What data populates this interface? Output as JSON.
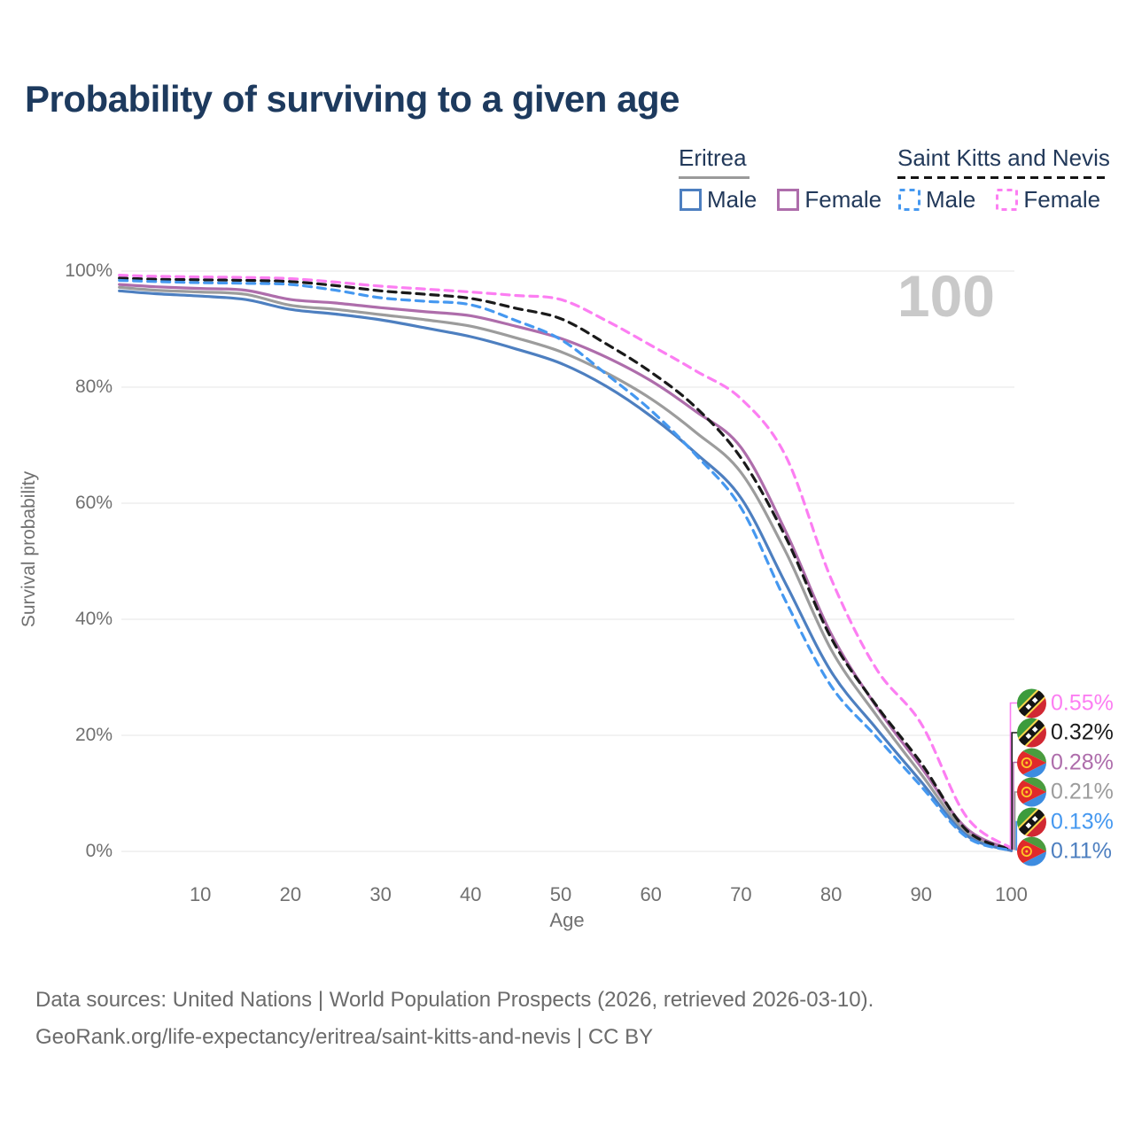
{
  "title": "Probability of surviving to a given age",
  "watermark_age": "100",
  "legend": {
    "groups": [
      {
        "country": "Eritrea",
        "line_style": "solid",
        "underline_color": "#9a9a9a",
        "items": [
          {
            "label": "Male",
            "color": "#4d7fc0"
          },
          {
            "label": "Female",
            "color": "#ae6dab"
          }
        ]
      },
      {
        "country": "Saint Kitts and Nevis",
        "line_style": "dashed",
        "underline_color": "#141414",
        "items": [
          {
            "label": "Male",
            "color": "#4598f0"
          },
          {
            "label": "Female",
            "color": "#fc7ef2"
          }
        ]
      }
    ]
  },
  "axes": {
    "y_title": "Survival probability",
    "x_title": "Age",
    "y_ticks": [
      {
        "label": "100%",
        "value": 100
      },
      {
        "label": "80%",
        "value": 80
      },
      {
        "label": "60%",
        "value": 60
      },
      {
        "label": "40%",
        "value": 40
      },
      {
        "label": "20%",
        "value": 20
      },
      {
        "label": "0%",
        "value": 0
      }
    ],
    "x_ticks": [
      10,
      20,
      30,
      40,
      50,
      60,
      70,
      80,
      90,
      100
    ]
  },
  "end_labels": [
    {
      "value": "0.55%",
      "color": "#fc7ef2",
      "flag": "saint-kitts-and-nevis",
      "series": "Saint Kitts and Nevis Female"
    },
    {
      "value": "0.32%",
      "color": "#1a1a1a",
      "flag": "saint-kitts-and-nevis",
      "series": "Saint Kitts and Nevis Both"
    },
    {
      "value": "0.28%",
      "color": "#ae6dab",
      "flag": "eritrea",
      "series": "Eritrea Female"
    },
    {
      "value": "0.21%",
      "color": "#9c9c9c",
      "flag": "eritrea",
      "series": "Eritrea Both"
    },
    {
      "value": "0.13%",
      "color": "#4598f0",
      "flag": "saint-kitts-and-nevis",
      "series": "Saint Kitts and Nevis Male"
    },
    {
      "value": "0.11%",
      "color": "#4d7fc0",
      "flag": "eritrea",
      "series": "Eritrea Male"
    }
  ],
  "sources": {
    "line1": "Data sources: United Nations | World Population Prospects (2026, retrieved 2026-03-10).",
    "line2": "GeoRank.org/life-expectancy/eritrea/saint-kitts-and-nevis | CC BY"
  },
  "chart_data": {
    "type": "line",
    "title": "Probability of surviving to a given age",
    "xlabel": "Age",
    "ylabel": "Survival probability",
    "xlim": [
      0,
      100
    ],
    "ylim": [
      0,
      100
    ],
    "grid": "horizontal",
    "legend_position": "top-right",
    "x": [
      1,
      5,
      10,
      15,
      20,
      25,
      30,
      35,
      40,
      45,
      50,
      55,
      60,
      65,
      70,
      75,
      80,
      85,
      90,
      95,
      100
    ],
    "series": [
      {
        "name": "Eritrea Both",
        "country": "Eritrea",
        "sex": "both",
        "style": "solid",
        "color": "#9c9c9c",
        "values": [
          97.2,
          96.7,
          96.4,
          96.0,
          94.1,
          93.4,
          92.5,
          91.6,
          90.5,
          88.5,
          86.1,
          82.5,
          78.0,
          72.2,
          65.3,
          51.5,
          34.8,
          23.5,
          13.3,
          3.3,
          0.21
        ]
      },
      {
        "name": "Eritrea Female",
        "country": "Eritrea",
        "sex": "female",
        "style": "solid",
        "color": "#ae6dab",
        "values": [
          97.7,
          97.3,
          97.0,
          96.7,
          95.1,
          94.5,
          93.7,
          93.0,
          92.3,
          90.5,
          88.4,
          85.2,
          81.1,
          75.8,
          69.6,
          55.0,
          37.5,
          25.0,
          14.5,
          4.0,
          0.28
        ]
      },
      {
        "name": "Eritrea Male",
        "country": "Eritrea",
        "sex": "male",
        "style": "solid",
        "color": "#4d7fc0",
        "values": [
          96.6,
          96.1,
          95.7,
          95.1,
          93.4,
          92.6,
          91.6,
          90.2,
          88.7,
          86.6,
          84.1,
          80.2,
          75.0,
          68.6,
          60.9,
          46.0,
          31.0,
          21.2,
          12.0,
          2.8,
          0.11
        ]
      },
      {
        "name": "Saint Kitts and Nevis Both",
        "country": "Saint Kitts and Nevis",
        "sex": "both",
        "style": "dashed",
        "color": "#1a1a1a",
        "values": [
          98.8,
          98.6,
          98.5,
          98.4,
          98.2,
          97.5,
          96.6,
          96.0,
          95.3,
          93.6,
          91.8,
          87.5,
          82.6,
          76.5,
          67.8,
          54.0,
          36.8,
          25.2,
          15.2,
          3.7,
          0.32
        ]
      },
      {
        "name": "Saint Kitts and Nevis Male",
        "country": "Saint Kitts and Nevis",
        "sex": "male",
        "style": "dashed",
        "color": "#4598f0",
        "values": [
          98.4,
          98.2,
          98.0,
          97.9,
          97.7,
          96.7,
          95.4,
          94.8,
          94.2,
          91.5,
          88.2,
          82.3,
          76.0,
          68.3,
          59.2,
          43.0,
          28.5,
          19.8,
          11.2,
          2.5,
          0.13
        ]
      },
      {
        "name": "Saint Kitts and Nevis Female",
        "country": "Saint Kitts and Nevis",
        "sex": "female",
        "style": "dashed",
        "color": "#fc7ef2",
        "values": [
          99.3,
          99.1,
          99.0,
          98.9,
          98.7,
          98.1,
          97.4,
          96.9,
          96.4,
          95.8,
          95.1,
          91.5,
          87.2,
          82.8,
          78.0,
          68.0,
          47.0,
          31.5,
          22.0,
          6.0,
          0.55
        ]
      }
    ]
  }
}
